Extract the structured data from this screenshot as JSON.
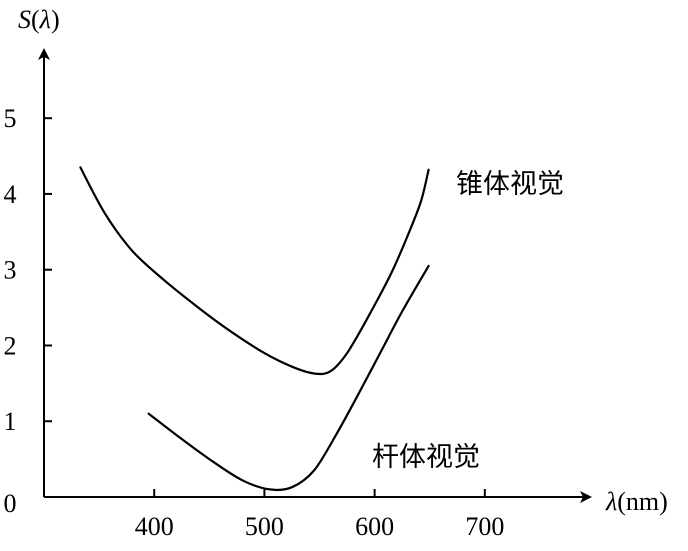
{
  "chart_data": {
    "type": "line",
    "title": "",
    "xlabel": {
      "symbol": "λ",
      "unit": "(nm)"
    },
    "ylabel": {
      "prefix": "S",
      "open": "(",
      "symbol": "λ",
      "close": ")"
    },
    "origin_label": "0",
    "xlim": [
      300,
      790
    ],
    "ylim": [
      0,
      5.9
    ],
    "x_ticks": [
      400,
      500,
      600,
      700
    ],
    "y_ticks": [
      1,
      2,
      3,
      4,
      5
    ],
    "grid": false,
    "legend": "none",
    "series": [
      {
        "name": "锥体视觉",
        "points": [
          [
            333,
            4.35
          ],
          [
            355,
            3.75
          ],
          [
            380,
            3.25
          ],
          [
            410,
            2.85
          ],
          [
            440,
            2.5
          ],
          [
            470,
            2.18
          ],
          [
            500,
            1.9
          ],
          [
            525,
            1.72
          ],
          [
            545,
            1.63
          ],
          [
            560,
            1.66
          ],
          [
            575,
            1.9
          ],
          [
            595,
            2.4
          ],
          [
            615,
            2.95
          ],
          [
            630,
            3.45
          ],
          [
            642,
            3.9
          ],
          [
            649,
            4.32
          ]
        ]
      },
      {
        "name": "杆体视觉",
        "points": [
          [
            395,
            1.1
          ],
          [
            420,
            0.82
          ],
          [
            450,
            0.5
          ],
          [
            480,
            0.22
          ],
          [
            505,
            0.1
          ],
          [
            525,
            0.13
          ],
          [
            545,
            0.35
          ],
          [
            565,
            0.82
          ],
          [
            585,
            1.35
          ],
          [
            605,
            1.9
          ],
          [
            625,
            2.45
          ],
          [
            649,
            3.05
          ]
        ]
      }
    ],
    "colors": {
      "line": "#000000",
      "background": "#ffffff"
    }
  }
}
